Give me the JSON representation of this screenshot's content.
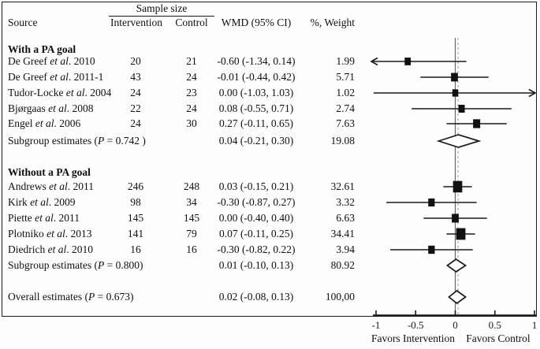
{
  "figure": {
    "header": {
      "sample_size": "Sample size",
      "source": "Source",
      "intervention": "Intervention",
      "control": "Control",
      "wmd": "WMD (95% CI)",
      "weight": "%, Weight"
    },
    "axis": {
      "ticks": [
        -1,
        -0.5,
        0,
        0.5,
        1
      ],
      "tick_labels": [
        "-1",
        "-0.5",
        "0",
        "0.5",
        "1"
      ],
      "left_label": "Favors Intervention",
      "right_label": "Favors Control"
    },
    "colors": {
      "ink": "#1a1a1a",
      "zero_line": "#666666",
      "dashed_line": "#b3b3b3",
      "marker_fill": "#111111",
      "diamond_fill": "#ffffff"
    }
  },
  "chart_data": {
    "type": "forest",
    "title": "",
    "xlabel": "WMD",
    "xlim": [
      -1,
      1
    ],
    "zero_line": 0,
    "overall_dashed_line": 0.02,
    "rows": [
      {
        "kind": "group",
        "label": "With a PA goal",
        "y": 63
      },
      {
        "kind": "study",
        "source_pre": "De Greef ",
        "source_it": "et al",
        "source_post": ". 2010",
        "n_intervention": "20",
        "n_control": "21",
        "wmd_text": "-0.60 (-1.34, 0.14)",
        "weight_text": "1.99",
        "est": -0.6,
        "lo": -1.34,
        "hi": 0.14,
        "weight": 1.99,
        "y": 78
      },
      {
        "kind": "study",
        "source_pre": "De Greef ",
        "source_it": "et al",
        "source_post": ". 2011-1",
        "n_intervention": "43",
        "n_control": "24",
        "wmd_text": "-0.01 (-0.44, 0.42)",
        "weight_text": "5.71",
        "est": -0.01,
        "lo": -0.44,
        "hi": 0.42,
        "weight": 5.71,
        "y": 98
      },
      {
        "kind": "study",
        "source_pre": "Tudor-Locke ",
        "source_it": "et al",
        "source_post": ". 2004",
        "n_intervention": "24",
        "n_control": "23",
        "wmd_text": "0.00 (-1.03, 1.03)",
        "weight_text": "1.02",
        "est": 0.0,
        "lo": -1.03,
        "hi": 1.03,
        "weight": 1.02,
        "y": 118
      },
      {
        "kind": "study",
        "source_pre": "Bjørgaas ",
        "source_it": "et al",
        "source_post": ". 2008",
        "n_intervention": "22",
        "n_control": "24",
        "wmd_text": "0.08 (-0.55, 0.71)",
        "weight_text": "2.74",
        "est": 0.08,
        "lo": -0.55,
        "hi": 0.71,
        "weight": 2.74,
        "y": 138
      },
      {
        "kind": "study",
        "source_pre": "Engel ",
        "source_it": "et al",
        "source_post": ". 2006",
        "n_intervention": "24",
        "n_control": "30",
        "wmd_text": "0.27 (-0.11, 0.65)",
        "weight_text": "7.63",
        "est": 0.27,
        "lo": -0.11,
        "hi": 0.65,
        "weight": 7.63,
        "y": 157
      },
      {
        "kind": "subgroup",
        "label_pre": "Subgroup estimates (",
        "label_it": "P",
        "label_post": " = 0.742 )",
        "wmd_text": "0.04 (-0.21, 0.30)",
        "weight_text": "19.08",
        "est": 0.04,
        "lo": -0.21,
        "hi": 0.3,
        "y": 179
      },
      {
        "kind": "group",
        "label": "Without a PA goal",
        "y": 219
      },
      {
        "kind": "study",
        "source_pre": "Andrews ",
        "source_it": "et al",
        "source_post": ". 2011",
        "n_intervention": "246",
        "n_control": "248",
        "wmd_text": "0.03 (-0.15, 0.21)",
        "weight_text": "32.61",
        "est": 0.03,
        "lo": -0.15,
        "hi": 0.21,
        "weight": 32.61,
        "y": 237
      },
      {
        "kind": "study",
        "source_pre": "Kirk ",
        "source_it": "et al",
        "source_post": ". 2009",
        "n_intervention": "98",
        "n_control": "34",
        "wmd_text": "-0.30 (-0.87, 0.27)",
        "weight_text": "3.32",
        "est": -0.3,
        "lo": -0.87,
        "hi": 0.27,
        "weight": 3.32,
        "y": 257
      },
      {
        "kind": "study",
        "source_pre": "Piette ",
        "source_it": "et al",
        "source_post": ". 2011",
        "n_intervention": "145",
        "n_control": "145",
        "wmd_text": "0.00 (-0.40, 0.40)",
        "weight_text": "6.63",
        "est": 0.0,
        "lo": -0.4,
        "hi": 0.4,
        "weight": 6.63,
        "y": 277
      },
      {
        "kind": "study",
        "source_pre": "Plotniko ",
        "source_it": "et al",
        "source_post": ". 2013",
        "n_intervention": "141",
        "n_control": "79",
        "wmd_text": "0.07 (-0.11, 0.25)",
        "weight_text": "34.41",
        "est": 0.07,
        "lo": -0.11,
        "hi": 0.25,
        "weight": 34.41,
        "y": 297
      },
      {
        "kind": "study",
        "source_pre": "Diedrich ",
        "source_it": "et al",
        "source_post": ". 2010",
        "n_intervention": "16",
        "n_control": "16",
        "wmd_text": "-0.30 (-0.82, 0.22)",
        "weight_text": "3.94",
        "est": -0.3,
        "lo": -0.82,
        "hi": 0.22,
        "weight": 3.94,
        "y": 317
      },
      {
        "kind": "subgroup",
        "label_pre": "Subgroup estimates (",
        "label_it": "P",
        "label_post": " = 0.800)",
        "wmd_text": "0.01 (-0.10, 0.13)",
        "weight_text": "80.92",
        "est": 0.01,
        "lo": -0.1,
        "hi": 0.13,
        "y": 337
      },
      {
        "kind": "overall",
        "label_pre": "Overall estimates (",
        "label_it": "P",
        "label_post": " = 0.673)",
        "wmd_text": "0.02 (-0.08, 0.13)",
        "weight_text": "100,00",
        "est": 0.02,
        "lo": -0.08,
        "hi": 0.13,
        "y": 377
      }
    ]
  }
}
